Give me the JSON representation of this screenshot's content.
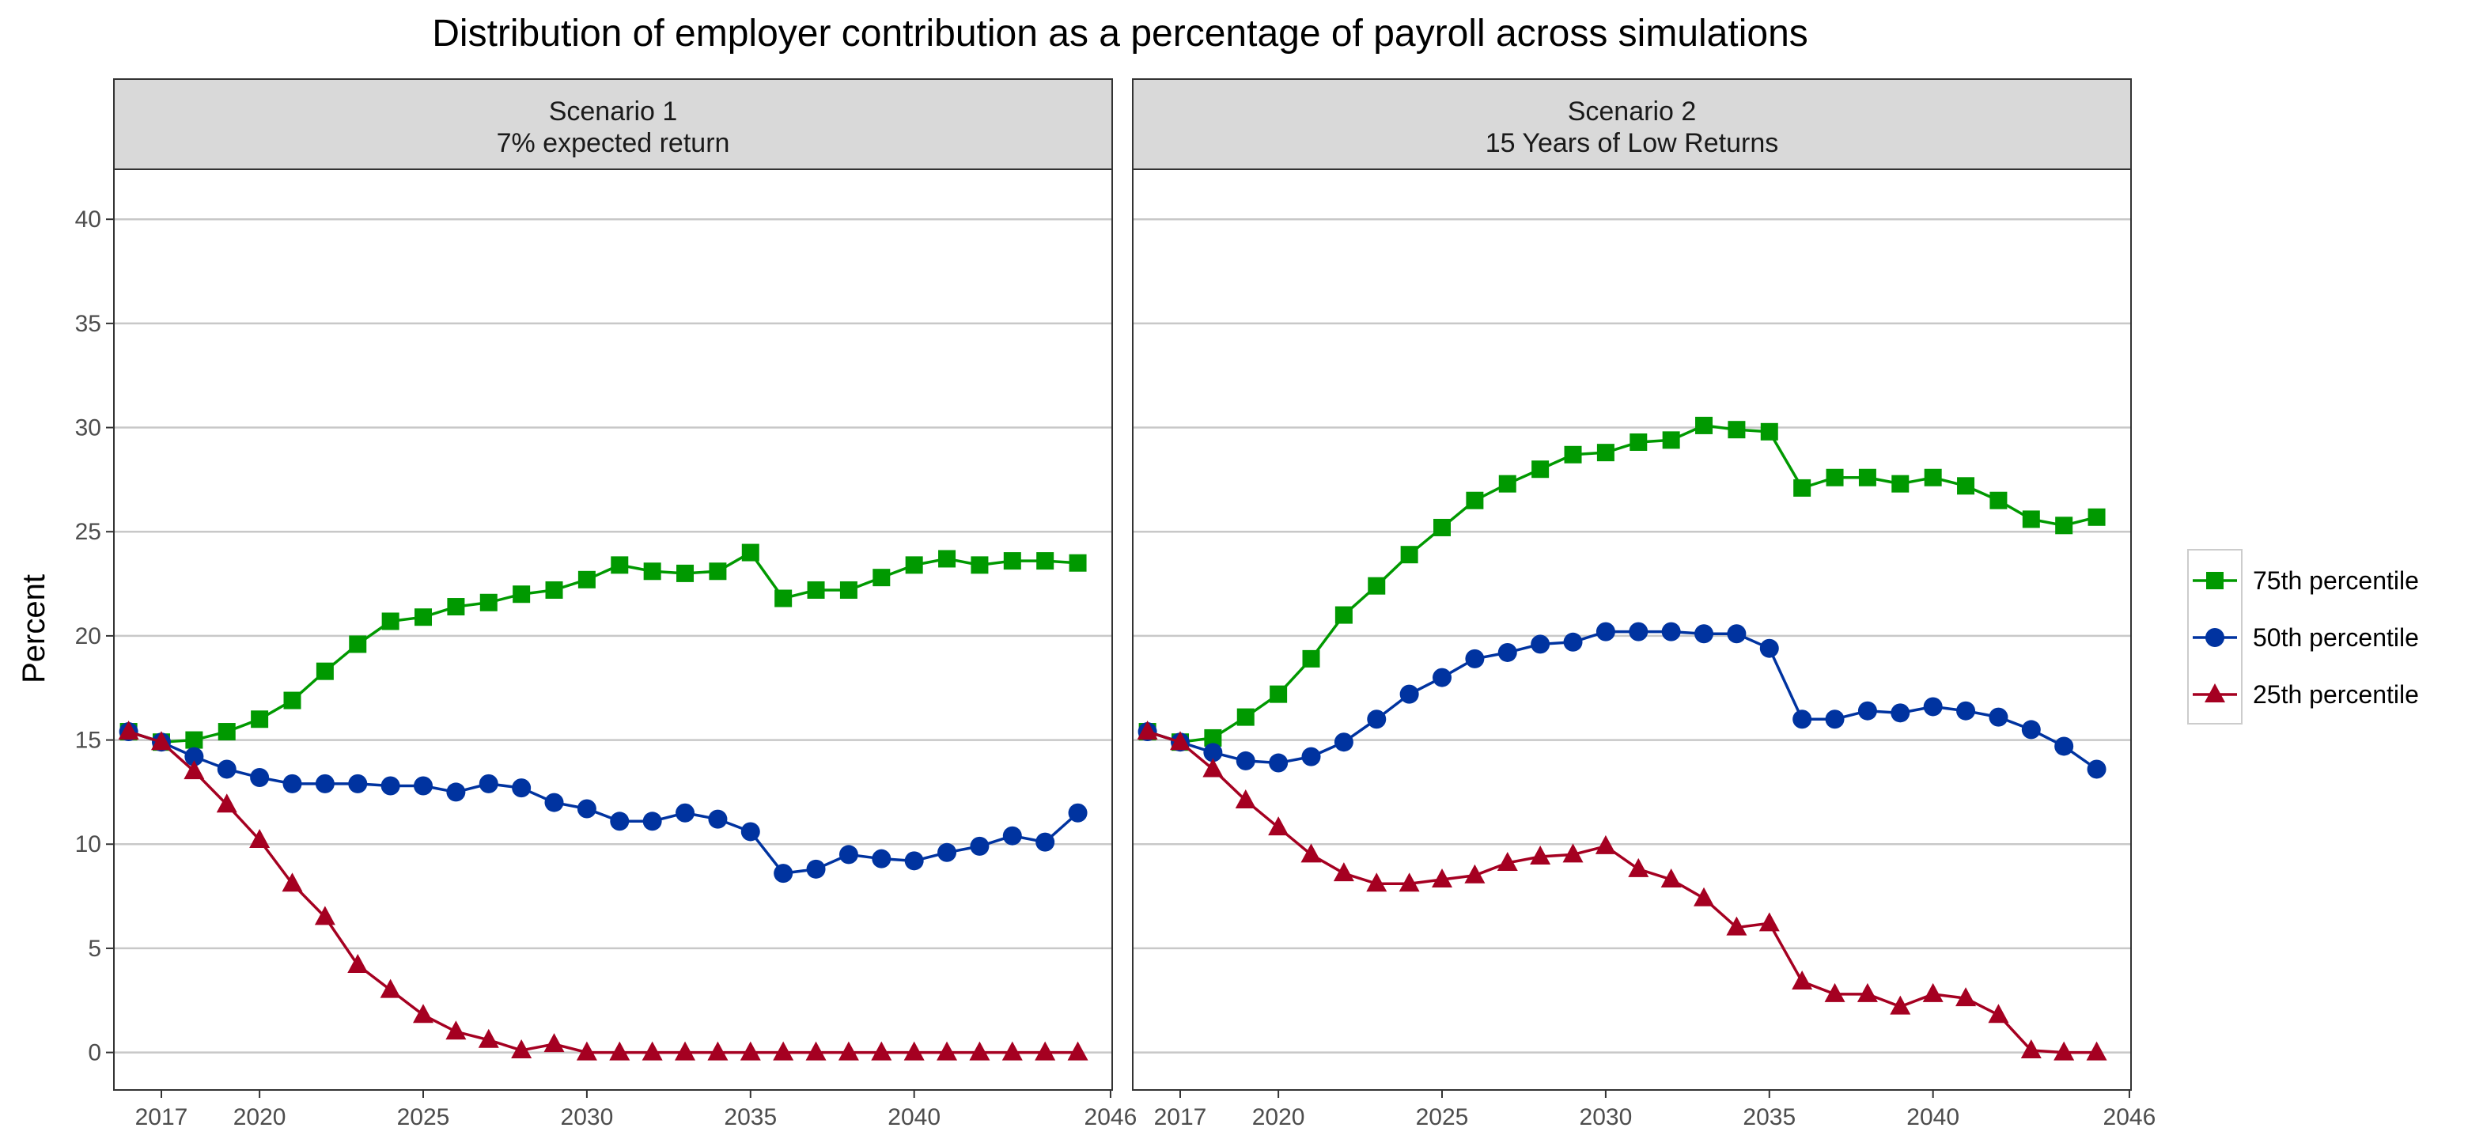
{
  "chart_data": {
    "type": "line",
    "title": "Distribution of employer contribution as a percentage of payroll across simulations",
    "ylabel": "Percent",
    "xlabel": "",
    "ylim": [
      -1.8,
      42.4
    ],
    "xlim": [
      2015.55,
      2046.05
    ],
    "y_ticks": [
      "0",
      "5",
      "10",
      "15",
      "20",
      "25",
      "30",
      "35",
      "40"
    ],
    "x_ticks": [
      "2017",
      "2020",
      "2025",
      "2030",
      "2035",
      "2040",
      "2046"
    ],
    "grid": "horizontal",
    "legend_position": "right",
    "x": [
      2016,
      2017,
      2018,
      2019,
      2020,
      2021,
      2022,
      2023,
      2024,
      2025,
      2026,
      2027,
      2028,
      2029,
      2030,
      2031,
      2032,
      2033,
      2034,
      2035,
      2036,
      2037,
      2038,
      2039,
      2040,
      2041,
      2042,
      2043,
      2044,
      2045
    ],
    "legend": [
      {
        "name": "75th percentile",
        "color": "#009900",
        "marker": "square"
      },
      {
        "name": "50th percentile",
        "color": "#0033a0",
        "marker": "circle"
      },
      {
        "name": "25th percentile",
        "color": "#a50021",
        "marker": "triangle"
      }
    ],
    "panels": [
      {
        "strip_line1": "Scenario 1",
        "strip_line2": "7% expected return",
        "series": [
          {
            "name": "75th percentile",
            "values": [
              15.4,
              14.9,
              15.0,
              15.4,
              16.0,
              16.9,
              18.3,
              19.6,
              20.7,
              20.9,
              21.4,
              21.6,
              22.0,
              22.2,
              22.7,
              23.4,
              23.1,
              23.0,
              23.1,
              24.0,
              21.8,
              22.2,
              22.2,
              22.8,
              23.4,
              23.7,
              23.4,
              23.6,
              23.6,
              23.5
            ]
          },
          {
            "name": "50th percentile",
            "values": [
              15.4,
              14.9,
              14.2,
              13.6,
              13.2,
              12.9,
              12.9,
              12.9,
              12.8,
              12.8,
              12.5,
              12.9,
              12.7,
              12.0,
              11.7,
              11.1,
              11.1,
              11.5,
              11.2,
              10.6,
              8.6,
              8.8,
              9.5,
              9.3,
              9.2,
              9.6,
              9.9,
              10.4,
              10.1,
              11.5
            ]
          },
          {
            "name": "25th percentile",
            "values": [
              15.4,
              14.9,
              13.5,
              11.9,
              10.2,
              8.1,
              6.5,
              4.2,
              3.0,
              1.8,
              1.0,
              0.6,
              0.1,
              0.4,
              0.0,
              0.0,
              0.0,
              0.0,
              0.0,
              0.0,
              0.0,
              0.0,
              0.0,
              0.0,
              0.0,
              0.0,
              0.0,
              0.0,
              0.0,
              0.0
            ]
          }
        ]
      },
      {
        "strip_line1": "Scenario 2",
        "strip_line2": "15 Years of Low Returns",
        "series": [
          {
            "name": "75th percentile",
            "values": [
              15.4,
              14.9,
              15.1,
              16.1,
              17.2,
              18.9,
              21.0,
              22.4,
              23.9,
              25.2,
              26.5,
              27.3,
              28.0,
              28.7,
              28.8,
              29.3,
              29.4,
              30.1,
              29.9,
              29.8,
              27.1,
              27.6,
              27.6,
              27.3,
              27.6,
              27.2,
              26.5,
              25.6,
              25.3,
              25.7
            ]
          },
          {
            "name": "50th percentile",
            "values": [
              15.4,
              14.9,
              14.4,
              14.0,
              13.9,
              14.2,
              14.9,
              16.0,
              17.2,
              18.0,
              18.9,
              19.2,
              19.6,
              19.7,
              20.2,
              20.2,
              20.2,
              20.1,
              20.1,
              19.4,
              16.0,
              16.0,
              16.4,
              16.3,
              16.6,
              16.4,
              16.1,
              15.5,
              14.7,
              13.6
            ]
          },
          {
            "name": "25th percentile",
            "values": [
              15.4,
              14.9,
              13.6,
              12.1,
              10.8,
              9.5,
              8.6,
              8.1,
              8.1,
              8.3,
              8.5,
              9.1,
              9.4,
              9.5,
              9.9,
              8.8,
              8.3,
              7.4,
              6.0,
              6.2,
              3.4,
              2.8,
              2.8,
              2.2,
              2.8,
              2.6,
              1.8,
              0.1,
              0.0,
              0.0
            ]
          }
        ]
      }
    ]
  }
}
